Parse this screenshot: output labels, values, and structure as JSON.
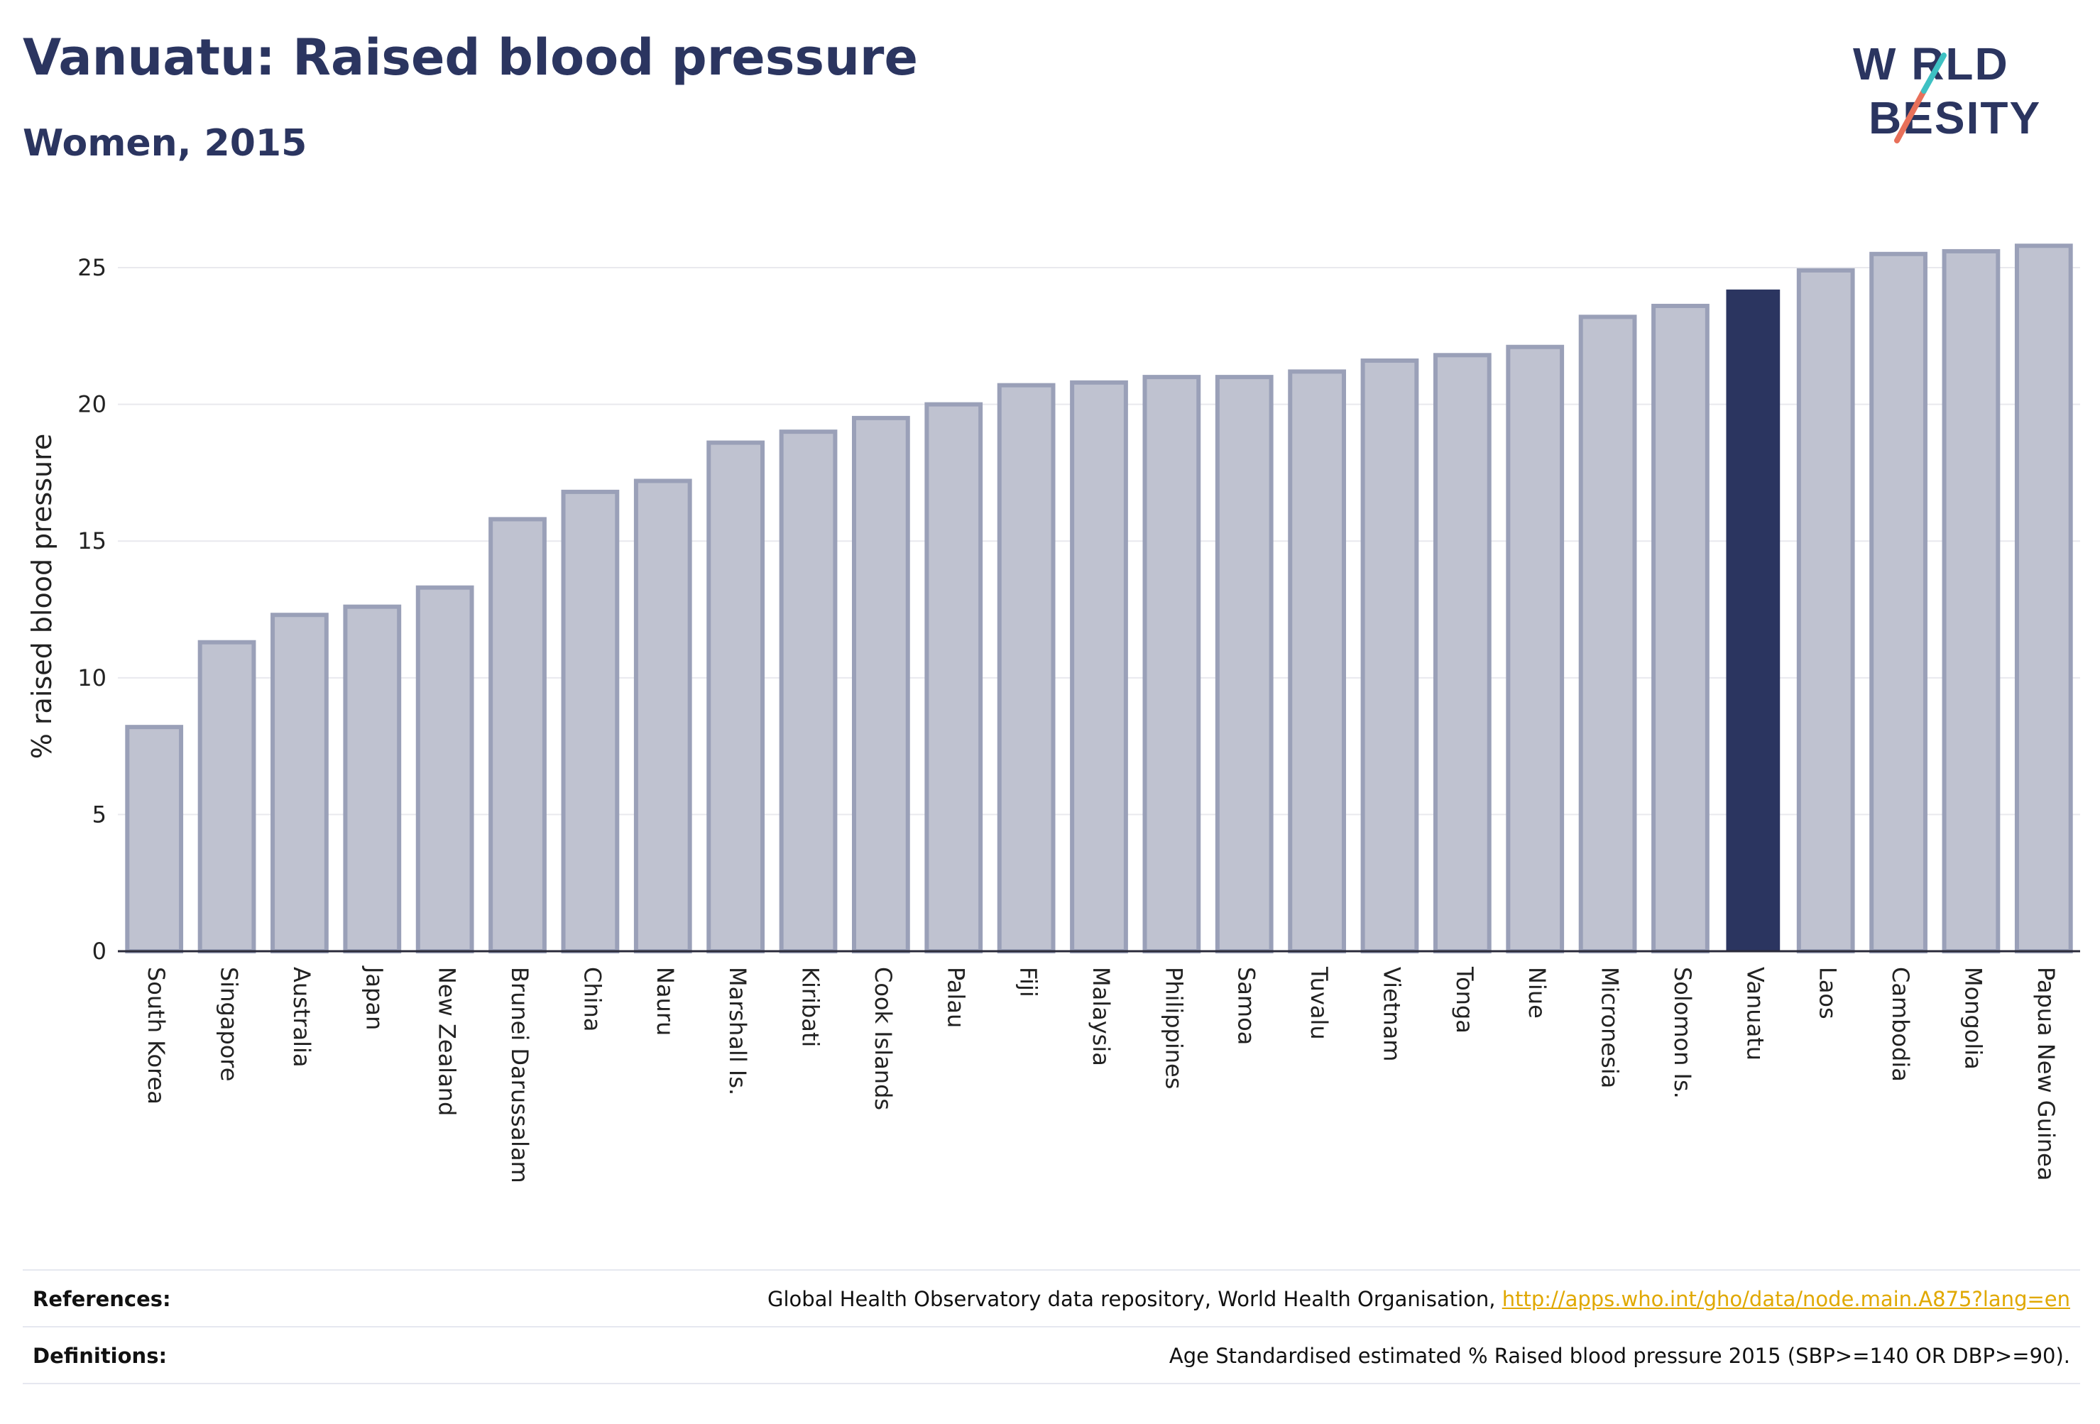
{
  "header": {
    "title": "Vanuatu: Raised blood pressure",
    "subtitle": "Women, 2015"
  },
  "logo": {
    "line1": "W RLD",
    "line2": "BESITY",
    "text": "WORLD OBESITY"
  },
  "colors": {
    "bar": "#bfc2d0",
    "bar_edge": "#9aa0b8",
    "highlight": "#2b3560",
    "link": "#e0a800",
    "grid": "#e9e9ee"
  },
  "chart_data": {
    "type": "bar",
    "ylabel": "% raised blood pressure",
    "ylim": [
      0,
      27
    ],
    "yticks": [
      0,
      5,
      10,
      15,
      20,
      25
    ],
    "highlight": "Vanuatu",
    "grid": true,
    "categories": [
      "South Korea",
      "Singapore",
      "Australia",
      "Japan",
      "New Zealand",
      "Brunei Darussalam",
      "China",
      "Nauru",
      "Marshall Is.",
      "Kiribati",
      "Cook Islands",
      "Palau",
      "Fiji",
      "Malaysia",
      "Philippines",
      "Samoa",
      "Tuvalu",
      "Vietnam",
      "Tonga",
      "Niue",
      "Micronesia",
      "Solomon Is.",
      "Vanuatu",
      "Laos",
      "Cambodia",
      "Mongolia",
      "Papua New Guinea"
    ],
    "values": [
      8.2,
      11.3,
      12.3,
      12.6,
      13.3,
      15.8,
      16.8,
      17.2,
      18.6,
      19.0,
      19.5,
      20.0,
      20.7,
      20.8,
      21.0,
      21.0,
      21.2,
      21.6,
      21.8,
      22.1,
      23.2,
      23.6,
      24.2,
      24.9,
      25.5,
      25.6,
      25.8
    ]
  },
  "footer": {
    "references_label": "References:",
    "references_text": "Global Health Observatory data repository, World Health Organisation, ",
    "references_link": "http://apps.who.int/gho/data/node.main.A875?lang=en",
    "definitions_label": "Definitions:",
    "definitions_text": "Age Standardised estimated % Raised blood pressure 2015 (SBP>=140 OR DBP>=90)."
  }
}
